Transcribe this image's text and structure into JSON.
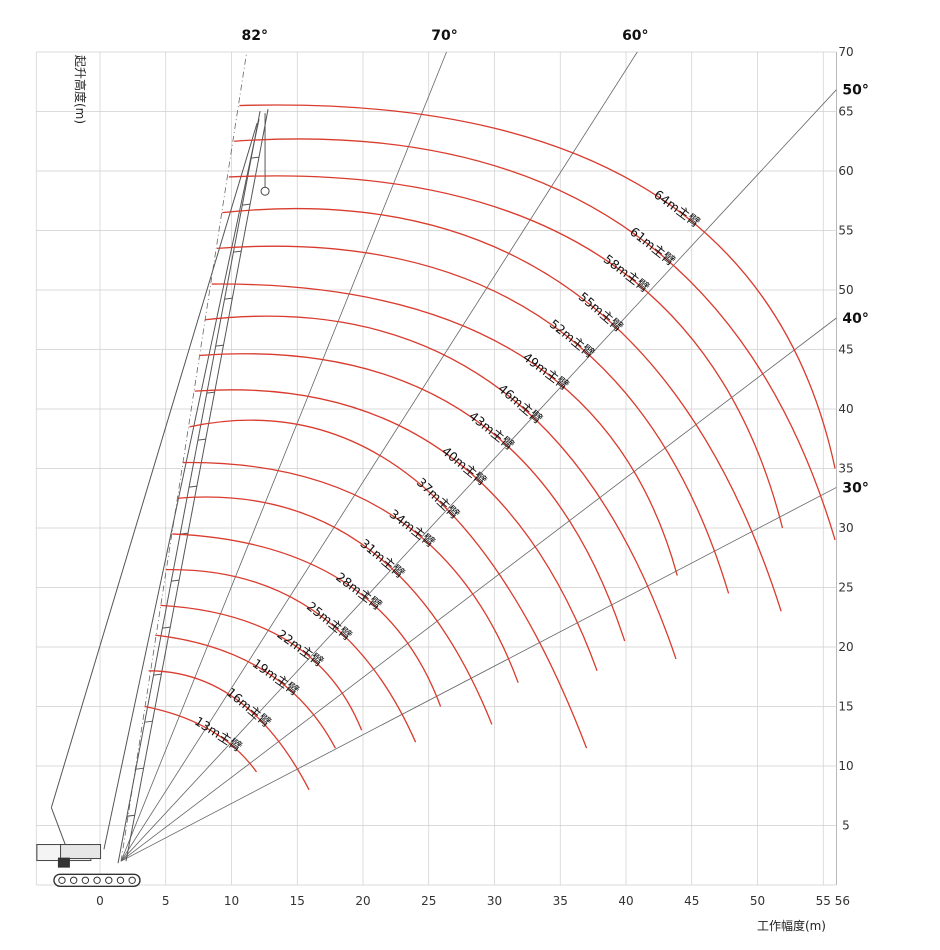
{
  "chart_data": {
    "type": "line",
    "title": "",
    "xlabel": "工作幅度(m)",
    "ylabel": "起升高度(m)",
    "xlim": [
      -5,
      56
    ],
    "ylim": [
      0,
      70
    ],
    "x_ticks": [
      "0",
      "5",
      "10",
      "15",
      "20",
      "25",
      "30",
      "35",
      "40",
      "45",
      "50",
      "55",
      "56"
    ],
    "x_tick_values": [
      0,
      5,
      10,
      15,
      20,
      25,
      30,
      35,
      40,
      45,
      50,
      55,
      56
    ],
    "y_ticks": [
      "5",
      "10",
      "15",
      "20",
      "25",
      "30",
      "35",
      "40",
      "45",
      "50",
      "55",
      "60",
      "65",
      "70"
    ],
    "y_tick_values": [
      5,
      10,
      15,
      20,
      25,
      30,
      35,
      40,
      45,
      50,
      55,
      60,
      65,
      70
    ],
    "pivot": [
      1.6,
      2.0
    ],
    "angle_lines": [
      {
        "label": "82°",
        "angle": 82
      },
      {
        "label": "70°",
        "angle": 70
      },
      {
        "label": "60°",
        "angle": 60
      },
      {
        "label": "50°",
        "angle": 50
      },
      {
        "label": "40°",
        "angle": 40
      },
      {
        "label": "30°",
        "angle": 30
      }
    ],
    "series": [
      {
        "name": "13m主臂",
        "boom_length": 13,
        "x": [
          3.4,
          8.4,
          11.9
        ],
        "y": [
          15,
          13,
          9.5
        ]
      },
      {
        "name": "16m主臂",
        "boom_length": 16,
        "x": [
          3.7,
          10.5,
          15.9
        ],
        "y": [
          18,
          15.5,
          8
        ]
      },
      {
        "name": "19m主臂",
        "boom_length": 19,
        "x": [
          4.2,
          12.5,
          17.9
        ],
        "y": [
          21,
          18,
          11.5
        ]
      },
      {
        "name": "22m主臂",
        "boom_length": 22,
        "x": [
          4.6,
          14.3,
          19.9
        ],
        "y": [
          23.5,
          20.5,
          13
        ]
      },
      {
        "name": "25m主臂",
        "boom_length": 25,
        "x": [
          5.0,
          16.3,
          24.0
        ],
        "y": [
          26.5,
          23,
          12
        ]
      },
      {
        "name": "28m主臂",
        "boom_length": 28,
        "x": [
          5.5,
          18.5,
          25.9
        ],
        "y": [
          29.5,
          25.5,
          15
        ]
      },
      {
        "name": "31m主臂",
        "boom_length": 31,
        "x": [
          5.9,
          20.1,
          29.8
        ],
        "y": [
          32.5,
          28.5,
          13.5
        ]
      },
      {
        "name": "34m主臂",
        "boom_length": 34,
        "x": [
          6.3,
          22.3,
          31.8
        ],
        "y": [
          35.5,
          31,
          17
        ]
      },
      {
        "name": "37m主臂",
        "boom_length": 37,
        "x": [
          6.8,
          24.0,
          37.0
        ],
        "y": [
          38.5,
          34,
          11.5
        ]
      },
      {
        "name": "40m主臂",
        "boom_length": 40,
        "x": [
          7.2,
          26.0,
          37.8
        ],
        "y": [
          41.5,
          36.5,
          18
        ]
      },
      {
        "name": "43m主臂",
        "boom_length": 43,
        "x": [
          7.6,
          28.0,
          39.9
        ],
        "y": [
          44.5,
          39.5,
          20.5
        ]
      },
      {
        "name": "46m主臂",
        "boom_length": 46,
        "x": [
          8.0,
          30.0,
          43.8
        ],
        "y": [
          47.5,
          42,
          19
        ]
      },
      {
        "name": "49m主臂",
        "boom_length": 49,
        "x": [
          8.5,
          32.0,
          43.9
        ],
        "y": [
          50.5,
          44.5,
          26
        ]
      },
      {
        "name": "52m主臂",
        "boom_length": 52,
        "x": [
          8.9,
          33.8,
          47.8
        ],
        "y": [
          53.5,
          47.5,
          24.5
        ]
      },
      {
        "name": "55m主臂",
        "boom_length": 55,
        "x": [
          9.3,
          35.8,
          51.8
        ],
        "y": [
          56.5,
          50,
          23
        ]
      },
      {
        "name": "58m主臂",
        "boom_length": 58,
        "x": [
          9.8,
          37.8,
          51.9
        ],
        "y": [
          59.5,
          53,
          30
        ]
      },
      {
        "name": "61m主臂",
        "boom_length": 61,
        "x": [
          10.2,
          39.6,
          55.9
        ],
        "y": [
          62.5,
          55.5,
          29
        ]
      },
      {
        "name": "64m主臂",
        "boom_length": 64,
        "x": [
          10.6,
          41.5,
          55.9
        ],
        "y": [
          65.5,
          58.5,
          35
        ]
      }
    ]
  }
}
